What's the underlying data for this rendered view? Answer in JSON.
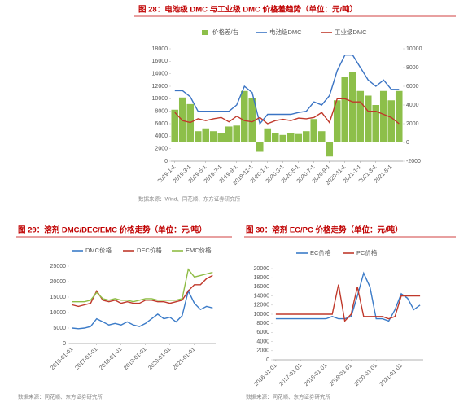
{
  "chart_data": [
    {
      "type": "combo",
      "title": "图 28：电池级 DMC 与工业级 DMC 价格差趋势（单位：元/吨）",
      "source": "数据来源：Wind、同花顺、东方证券研究所",
      "categories": [
        "2019-1-1",
        null,
        "2019-3-1",
        null,
        "2019-5-1",
        null,
        "2019-7-1",
        null,
        "2019-9-1",
        null,
        "2019-11-1",
        null,
        "2020-1-1",
        null,
        "2020-3-1",
        null,
        "2020-5-1",
        null,
        "2020-7-1",
        null,
        "2020-9-1",
        null,
        "2020-11-1",
        null,
        "2021-1-1",
        null,
        "2021-3-1",
        null,
        "2021-5-1",
        null
      ],
      "ylim": [
        0,
        18000
      ],
      "yticks": [
        0,
        2000,
        4000,
        6000,
        8000,
        10000,
        12000,
        14000,
        16000,
        18000
      ],
      "y2lim": [
        -2000,
        10000
      ],
      "y2ticks": [
        -2000,
        0,
        2000,
        4000,
        6000,
        8000,
        10000
      ],
      "series": [
        {
          "name": "价格差/右",
          "type": "bar",
          "axis": "y2",
          "color": "#8dbf4a",
          "values": [
            3500,
            4800,
            4100,
            1200,
            1500,
            1200,
            1000,
            1700,
            1800,
            5500,
            4700,
            -1000,
            1500,
            1000,
            800,
            1000,
            900,
            1200,
            2500,
            1200,
            -1500,
            4500,
            7000,
            7500,
            5500,
            5000,
            4000,
            5500,
            4500,
            5500
          ]
        },
        {
          "name": "电池级DMC",
          "type": "line",
          "color": "#3b74c4",
          "values": [
            11300,
            11300,
            10300,
            8000,
            8000,
            8000,
            8000,
            8000,
            9000,
            12000,
            11000,
            6000,
            7500,
            7500,
            7500,
            7500,
            7800,
            8000,
            9500,
            9000,
            10500,
            14500,
            17000,
            17000,
            15000,
            13000,
            12000,
            13000,
            11500,
            11500
          ]
        },
        {
          "name": "工业级DMC",
          "type": "line",
          "color": "#c0392b",
          "values": [
            7800,
            6500,
            6200,
            6800,
            6500,
            6800,
            7000,
            6300,
            7200,
            6500,
            6300,
            7000,
            6000,
            6500,
            6700,
            6500,
            6900,
            6800,
            7000,
            7800,
            6200,
            10000,
            10000,
            9500,
            9500,
            8000,
            8000,
            7500,
            7000,
            6000
          ]
        }
      ]
    },
    {
      "type": "line",
      "title": "图 29：溶剂 DMC/DEC/EMC 价格走势（单位：元/吨）",
      "source": "数据来源：同花顺、东方证券研究所",
      "categories": [
        "2016-01-01",
        null,
        null,
        null,
        "2017-01-01",
        null,
        null,
        null,
        "2018-01-01",
        null,
        null,
        null,
        "2019-01-01",
        null,
        null,
        null,
        "2020-01-01",
        null,
        null,
        null,
        "2021-01-01",
        null,
        null,
        null
      ],
      "ylim": [
        0,
        25000
      ],
      "yticks": [
        0,
        5000,
        10000,
        15000,
        20000,
        25000
      ],
      "series": [
        {
          "name": "DMC价格",
          "color": "#3b7bc8",
          "values": [
            5000,
            4800,
            5000,
            5500,
            8000,
            7000,
            6000,
            6500,
            6000,
            7000,
            6000,
            5500,
            6500,
            8000,
            9500,
            8000,
            8500,
            7000,
            9000,
            17000,
            13000,
            11000,
            12000,
            11500
          ]
        },
        {
          "name": "DEC价格",
          "color": "#c0392b",
          "values": [
            12500,
            12000,
            12500,
            13000,
            17000,
            14000,
            13500,
            14000,
            13000,
            13500,
            13000,
            13000,
            14000,
            14000,
            13500,
            13500,
            13000,
            13500,
            14000,
            17000,
            19000,
            19000,
            21000,
            22000
          ]
        },
        {
          "name": "EMC价格",
          "color": "#8fbc45",
          "values": [
            13500,
            13500,
            13500,
            14000,
            16500,
            14500,
            14000,
            14500,
            14000,
            14000,
            13500,
            14000,
            14500,
            14500,
            14000,
            14000,
            14000,
            14000,
            14500,
            24000,
            21500,
            22000,
            22500,
            23000
          ]
        }
      ]
    },
    {
      "type": "line",
      "title": "图 30：溶剂 EC/PC 价格走势（单位：元/吨）",
      "source": "数据来源：同花顺、东方证券研究所",
      "categories": [
        "2016-01-01",
        null,
        null,
        null,
        "2017-01-01",
        null,
        null,
        null,
        "2018-01-01",
        null,
        null,
        null,
        "2019-01-01",
        null,
        null,
        null,
        "2020-01-01",
        null,
        null,
        null,
        "2021-01-01",
        null,
        null,
        null
      ],
      "ylim": [
        0,
        20000
      ],
      "yticks": [
        0,
        2000,
        4000,
        6000,
        8000,
        10000,
        12000,
        14000,
        16000,
        18000,
        20000
      ],
      "series": [
        {
          "name": "EC价格",
          "color": "#3b7bc8",
          "values": [
            9000,
            9000,
            9000,
            9000,
            9000,
            9000,
            9000,
            9000,
            9000,
            9500,
            9000,
            9000,
            9500,
            14000,
            19000,
            16000,
            9000,
            9000,
            8500,
            11000,
            14500,
            13500,
            11000,
            12000
          ]
        },
        {
          "name": "PC价格",
          "color": "#c0392b",
          "values": [
            10000,
            10000,
            10000,
            10000,
            10000,
            10000,
            10000,
            10000,
            10000,
            10000,
            16500,
            8500,
            10000,
            16000,
            9500,
            9500,
            9500,
            9500,
            9000,
            9500,
            14000,
            14000,
            14000,
            14000
          ]
        }
      ]
    }
  ]
}
